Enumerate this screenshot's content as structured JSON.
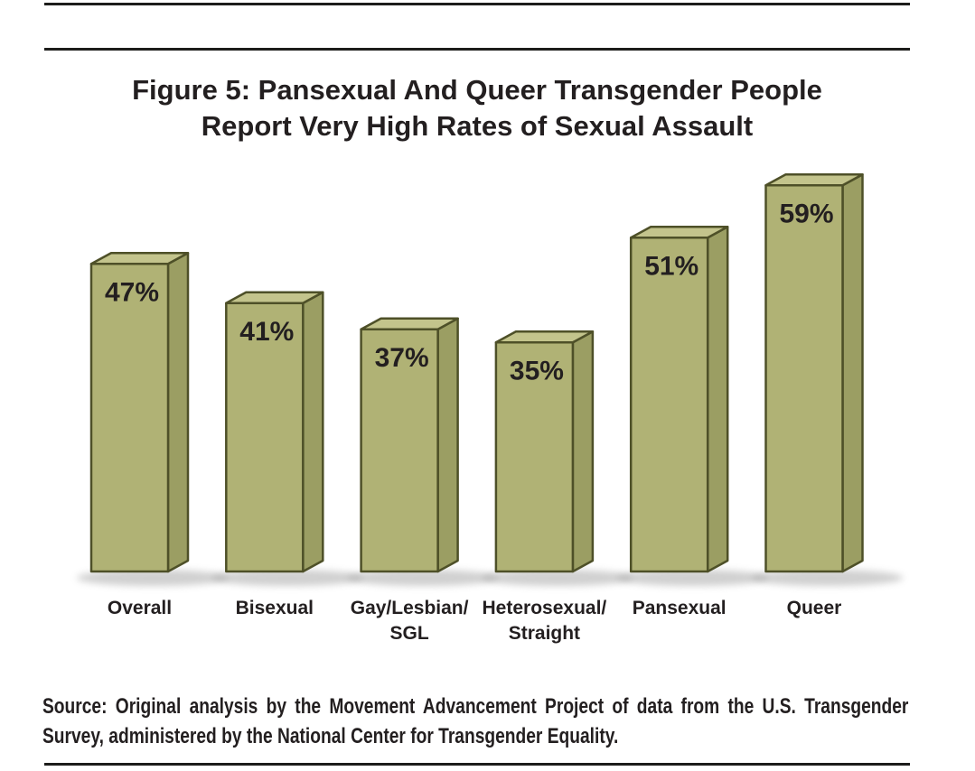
{
  "figure": {
    "title": "Figure 5: Pansexual And Queer Transgender People\nReport Very High Rates of Sexual Assault",
    "source": {
      "line1": "Source: Original analysis by the Movement Advancement Project of data from the U.S. Transgender",
      "line2": "Survey, administered by the National Center for Transgender Equality."
    }
  },
  "chart_data": {
    "type": "bar",
    "style": "3d-column",
    "title": "Figure 5: Pansexual And Queer Transgender People Report Very High Rates of Sexual Assault",
    "categories": [
      "Overall",
      "Bisexual",
      "Gay/Lesbian/\nSGL",
      "Heterosexual/\nStraight",
      "Pansexual",
      "Queer"
    ],
    "values": [
      47,
      41,
      37,
      35,
      51,
      59
    ],
    "value_labels": [
      "47%",
      "41%",
      "37%",
      "35%",
      "51%",
      "59%"
    ],
    "unit": "%",
    "xlabel": "",
    "ylabel": "",
    "ylim": [
      0,
      65
    ],
    "grid": false,
    "legend": "none",
    "value_label_position": "inside-top-left",
    "colors": {
      "bar_front": "#b0b275",
      "bar_top": "#c3c48c",
      "bar_side": "#9b9e63",
      "bar_outline": "#4e5028",
      "text": "#231f20",
      "rule": "#1d1d1b",
      "shadow": "#8a8a8a"
    }
  }
}
